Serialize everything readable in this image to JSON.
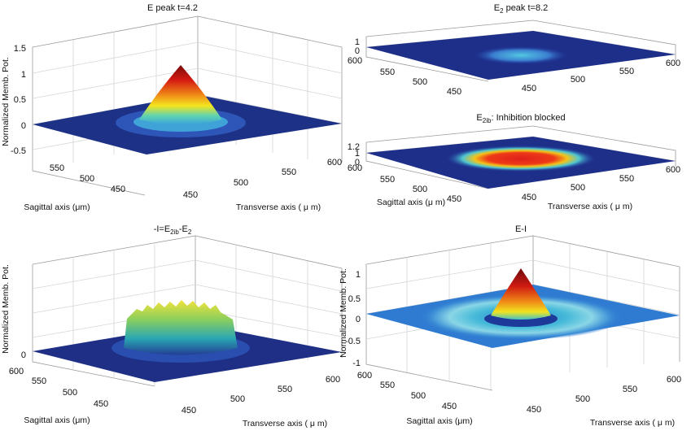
{
  "figure": {
    "colors": {
      "surface_edge": "#1c2a7a",
      "grid": "#d6d6d6",
      "frame": "#9a9a9a",
      "flat_cyan": "#2f7bd1"
    },
    "panels": [
      {
        "title_main": "E peak t=4.2",
        "title_sub": "",
        "title_rest": "",
        "ylabel": "Normalized Memb. Pot.",
        "sag_label": "Sagittal axis (μm)",
        "trans_label": "Transverse axis ( μ m)"
      },
      {
        "title_main": "E",
        "title_sub": "2",
        "title_rest": " peak t=8.2",
        "ylabel": "",
        "sag_label": "",
        "trans_label": ""
      },
      {
        "title_main": "E",
        "title_sub": "2ib",
        "title_rest": ": Inhibition blocked",
        "ylabel": "",
        "sag_label": "Sagittal axis (μ m)",
        "trans_label": "Transverse axis ( μ m)"
      },
      {
        "title_main": "-I=E",
        "title_sub": "2ib",
        "title_rest": "-E",
        "title_sub2": "2",
        "ylabel": "Normalized Memb. Pot.",
        "sag_label": "Sagittal axis (μm)",
        "trans_label": "Transverse axis ( μ m)"
      },
      {
        "title_main": "E-I",
        "title_sub": "",
        "title_rest": "",
        "ylabel": "Normalized Memb. Pot.",
        "sag_label": "Sagittal axis (μm)",
        "trans_label": "Transverse axis ( μ m)"
      }
    ]
  },
  "chart_data": [
    {
      "type": "surface3d",
      "title": "E peak t=4.2",
      "zlabel": "Normalized Memb. Pot.",
      "xlabel": "Sagittal axis (μm)",
      "ylabel": "Transverse axis ( μ m)",
      "zlim": [
        -0.5,
        1.5
      ],
      "zticks": [
        "1.5",
        "1",
        "0.5",
        "0",
        "-0.5"
      ],
      "sagittal_ticks": [
        "550",
        "500",
        "450"
      ],
      "transverse_ticks": [
        "450",
        "500",
        "550",
        "600"
      ],
      "peak": 1.0,
      "shape": "cone"
    },
    {
      "type": "surface3d",
      "title": "E2 peak t=8.2",
      "zticks": [
        "1",
        "0"
      ],
      "sagittal_ticks": [
        "600",
        "550",
        "500",
        "450"
      ],
      "transverse_ticks": [
        "450",
        "500",
        "550",
        "600"
      ],
      "peak": 0.3,
      "shape": "flat-disc"
    },
    {
      "type": "surface3d",
      "title": "E2ib: Inhibition blocked",
      "zticks": [
        "1.2",
        "1",
        "0"
      ],
      "sagittal_ticks": [
        "600",
        "550",
        "500",
        "450"
      ],
      "transverse_ticks": [
        "450",
        "500",
        "550",
        "600"
      ],
      "peak": 1.0,
      "shape": "flat-disc"
    },
    {
      "type": "surface3d",
      "title": "-I=E2ib-E2",
      "zlabel": "Normalized Memb. Pot.",
      "xlabel": "Sagittal axis (μm)",
      "ylabel": "Transverse axis ( μ m)",
      "zticks": [
        "0"
      ],
      "sagittal_ticks": [
        "600",
        "550",
        "500",
        "450"
      ],
      "transverse_ticks": [
        "450",
        "500",
        "550",
        "600"
      ],
      "peak": 0.6,
      "shape": "noisy-plateau"
    },
    {
      "type": "surface3d",
      "title": "E-I",
      "zlabel": "Normalized Memb. Pot.",
      "xlabel": "Sagittal axis (μm)",
      "ylabel": "Transverse axis ( μ m)",
      "zlim": [
        -1,
        1
      ],
      "zticks": [
        "1",
        "0.5",
        "0",
        "-0.5",
        "-1"
      ],
      "sagittal_ticks": [
        "600",
        "550",
        "500",
        "450"
      ],
      "transverse_ticks": [
        "450",
        "500",
        "550",
        "600"
      ],
      "peak": 1.0,
      "shape": "cone-with-ring"
    }
  ]
}
